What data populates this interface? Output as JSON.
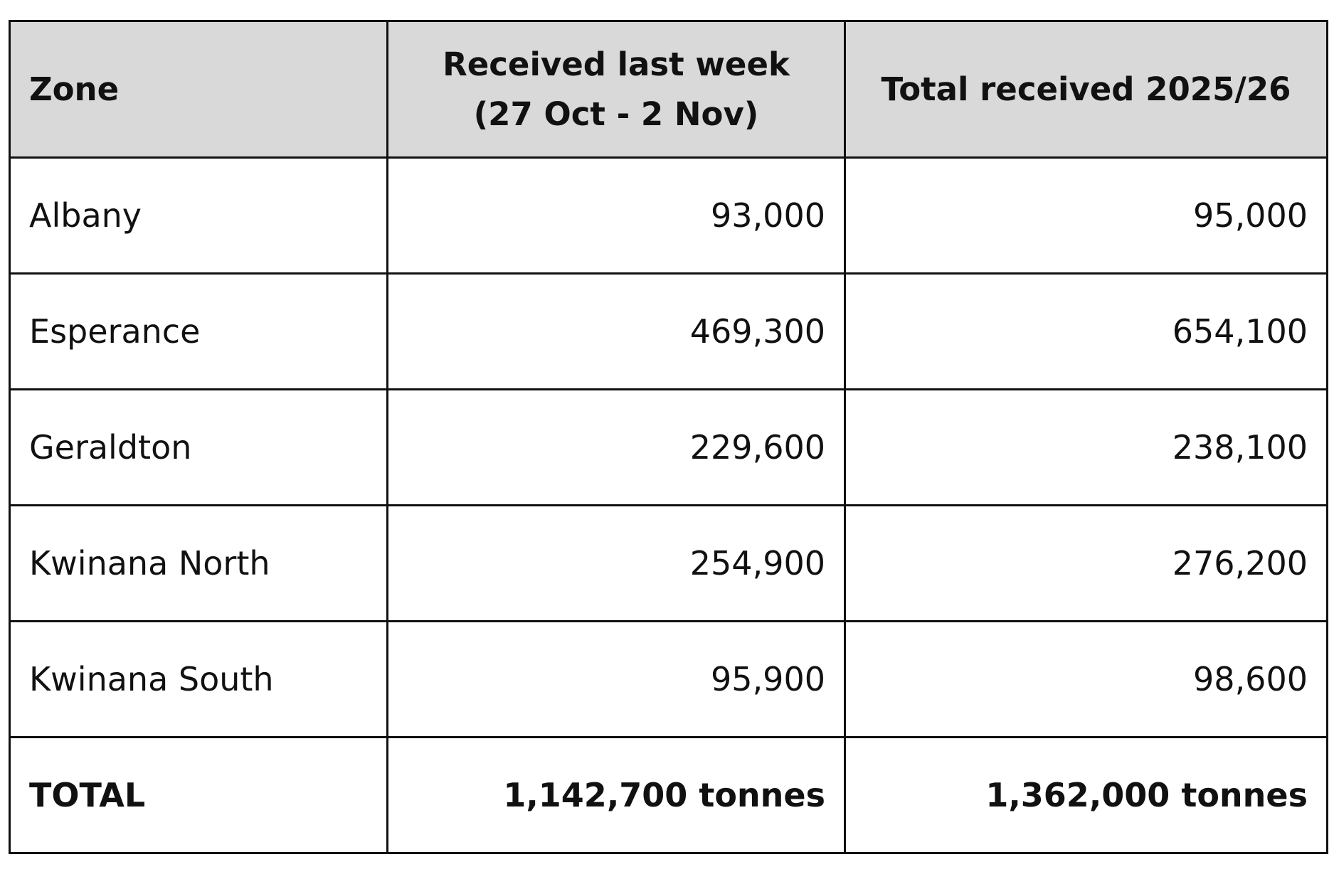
{
  "table": {
    "header": [
      "Zone",
      "Received last week\n(27 Oct - 2 Nov)",
      "Total received 2025/26"
    ],
    "rows": [
      [
        "Albany",
        "93,000",
        "95,000"
      ],
      [
        "Esperance",
        "469,300",
        "654,100"
      ],
      [
        "Geraldton",
        "229,600",
        "238,100"
      ],
      [
        "Kwinana North",
        "254,900",
        "276,200"
      ],
      [
        "Kwinana South",
        "95,900",
        "98,600"
      ]
    ],
    "total": [
      "TOTAL",
      "1,142,700 tonnes",
      "1,362,000 tonnes"
    ]
  }
}
